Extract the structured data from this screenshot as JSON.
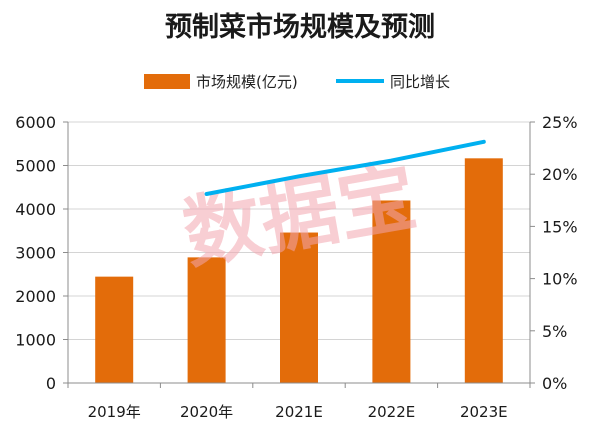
{
  "chart_data": {
    "type": "bar",
    "title": "预制菜市场规模及预测",
    "categories": [
      "2019年",
      "2020年",
      "2021E",
      "2022E",
      "2023E"
    ],
    "series": [
      {
        "name": "市场规模(亿元)",
        "type": "bar",
        "axis": "left",
        "color": "#E36C0A",
        "values": [
          2445,
          2888,
          3459,
          4196,
          5165
        ]
      },
      {
        "name": "同比增长",
        "type": "line",
        "axis": "right",
        "color": "#00B0F0",
        "values": [
          null,
          18.1,
          19.8,
          21.3,
          23.1
        ]
      }
    ],
    "ylim": [
      0,
      6000
    ],
    "y_ticks": [
      "0",
      "1000",
      "2000",
      "3000",
      "4000",
      "5000",
      "6000"
    ],
    "y2lim": [
      0,
      25
    ],
    "y2_ticks": [
      "0%",
      "5%",
      "10%",
      "15%",
      "20%",
      "25%"
    ],
    "legend_position": "top",
    "grid": true
  },
  "watermark": "数据宝"
}
